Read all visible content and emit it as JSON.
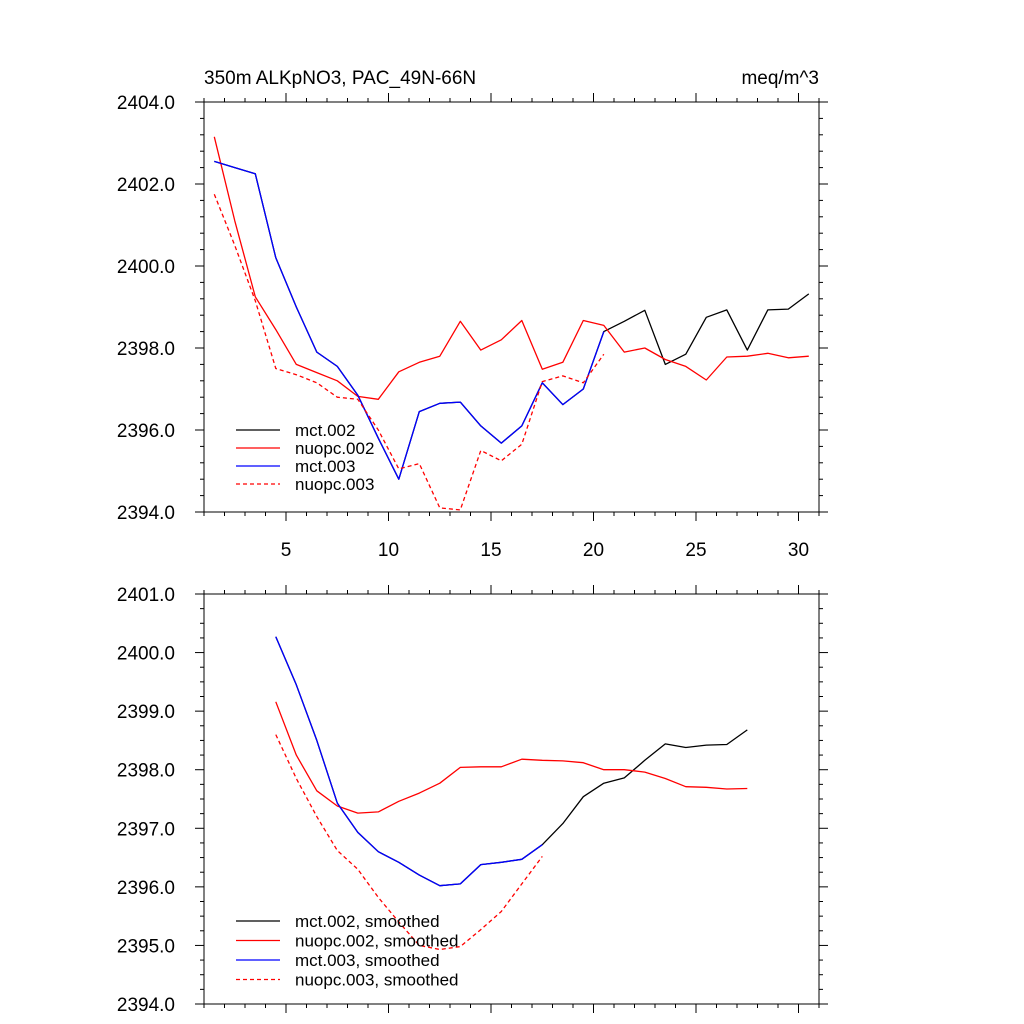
{
  "figure": {
    "title_left": "350m ALKpNO3, PAC_49N-66N",
    "title_right": "meq/m^3"
  },
  "chart_data": [
    {
      "type": "line",
      "title": "350m ALKpNO3, PAC_49N-66N",
      "units": "meq/m^3",
      "xlim": [
        1,
        31
      ],
      "ylim": [
        2394.0,
        2404.0
      ],
      "xticks": [
        5,
        10,
        15,
        20,
        25,
        30
      ],
      "yticks": [
        2394.0,
        2396.0,
        2398.0,
        2400.0,
        2402.0,
        2404.0
      ],
      "ytick_labels": [
        "2394.0",
        "2396.0",
        "2398.0",
        "2400.0",
        "2402.0",
        "2404.0"
      ],
      "legend_position": "bottom-left",
      "series": [
        {
          "name": "mct.002",
          "color": "#000000",
          "dash": "solid",
          "x": [
            1.5,
            2.5,
            3.5,
            4.5,
            5.5,
            6.5,
            7.5,
            8.5,
            9.5,
            10.5,
            11.5,
            12.5,
            13.5,
            14.5,
            15.5,
            16.5,
            17.5,
            18.5,
            19.5,
            20.5,
            21.5,
            22.5,
            23.5,
            24.5,
            25.5,
            26.5,
            27.5,
            28.5,
            29.5,
            30.5
          ],
          "values": [
            2402.55,
            2402.4,
            2402.25,
            2400.2,
            2399.0,
            2397.9,
            2397.55,
            2396.85,
            2395.8,
            2394.8,
            2396.45,
            2396.65,
            2396.68,
            2396.1,
            2395.68,
            2396.1,
            2397.15,
            2396.62,
            2397.0,
            2398.4,
            2398.65,
            2398.92,
            2397.6,
            2397.85,
            2398.75,
            2398.93,
            2397.95,
            2398.93,
            2398.95,
            2399.32
          ]
        },
        {
          "name": "nuopc.002",
          "color": "#ff0000",
          "dash": "solid",
          "x": [
            1.5,
            2.5,
            3.5,
            4.5,
            5.5,
            6.5,
            7.5,
            8.5,
            9.5,
            10.5,
            11.5,
            12.5,
            13.5,
            14.5,
            15.5,
            16.5,
            17.5,
            18.5,
            19.5,
            20.5,
            21.5,
            22.5,
            23.5,
            24.5,
            25.5,
            26.5,
            27.5,
            28.5,
            29.5,
            30.5
          ],
          "values": [
            2403.15,
            2401.1,
            2399.25,
            2398.45,
            2397.6,
            2397.4,
            2397.2,
            2396.82,
            2396.75,
            2397.42,
            2397.65,
            2397.8,
            2398.65,
            2397.95,
            2398.2,
            2398.67,
            2397.48,
            2397.65,
            2398.67,
            2398.55,
            2397.9,
            2398.0,
            2397.72,
            2397.55,
            2397.22,
            2397.78,
            2397.8,
            2397.87,
            2397.76,
            2397.8
          ]
        },
        {
          "name": "mct.003",
          "color": "#0000ff",
          "dash": "solid",
          "x": [
            1.5,
            2.5,
            3.5,
            4.5,
            5.5,
            6.5,
            7.5,
            8.5,
            9.5,
            10.5,
            11.5,
            12.5,
            13.5,
            14.5,
            15.5,
            16.5,
            17.5,
            18.5,
            19.5,
            20.5
          ],
          "values": [
            2402.55,
            2402.4,
            2402.25,
            2400.2,
            2399.0,
            2397.9,
            2397.55,
            2396.85,
            2395.8,
            2394.8,
            2396.45,
            2396.65,
            2396.68,
            2396.1,
            2395.68,
            2396.1,
            2397.15,
            2396.62,
            2397.0,
            2398.4
          ]
        },
        {
          "name": "nuopc.003",
          "color": "#ff0000",
          "dash": "dashed",
          "x": [
            1.5,
            2.5,
            3.5,
            4.5,
            5.5,
            6.5,
            7.5,
            8.5,
            9.5,
            10.5,
            11.5,
            12.5,
            13.5,
            14.5,
            15.5,
            16.5,
            17.5,
            18.5,
            19.5,
            20.5
          ],
          "values": [
            2401.75,
            2400.5,
            2399.15,
            2397.5,
            2397.35,
            2397.15,
            2396.8,
            2396.75,
            2396.0,
            2395.05,
            2395.18,
            2394.1,
            2394.05,
            2395.5,
            2395.25,
            2395.65,
            2397.18,
            2397.32,
            2397.15,
            2397.85
          ]
        }
      ]
    },
    {
      "type": "line",
      "title": "",
      "xlim": [
        1,
        31
      ],
      "ylim": [
        2394.0,
        2401.0
      ],
      "xticks": [
        5,
        10,
        15,
        20,
        25,
        30
      ],
      "yticks": [
        2394.0,
        2395.0,
        2396.0,
        2397.0,
        2398.0,
        2399.0,
        2400.0,
        2401.0
      ],
      "ytick_labels": [
        "2394.0",
        "2395.0",
        "2396.0",
        "2397.0",
        "2398.0",
        "2399.0",
        "2400.0",
        "2401.0"
      ],
      "legend_position": "bottom-left",
      "series": [
        {
          "name": "mct.002, smoothed",
          "color": "#000000",
          "dash": "solid",
          "x": [
            4.5,
            5.5,
            6.5,
            7.5,
            8.5,
            9.5,
            10.5,
            11.5,
            12.5,
            13.5,
            14.5,
            15.5,
            16.5,
            17.5,
            18.5,
            19.5,
            20.5,
            21.5,
            22.5,
            23.5,
            24.5,
            25.5,
            26.5,
            27.5
          ],
          "values": [
            2400.27,
            2399.45,
            2398.5,
            2397.43,
            2396.93,
            2396.6,
            2396.42,
            2396.2,
            2396.02,
            2396.05,
            2396.38,
            2396.42,
            2396.47,
            2396.72,
            2397.08,
            2397.54,
            2397.77,
            2397.86,
            2398.16,
            2398.44,
            2398.38,
            2398.42,
            2398.43,
            2398.68
          ]
        },
        {
          "name": "nuopc.002, smoothed",
          "color": "#ff0000",
          "dash": "solid",
          "x": [
            4.5,
            5.5,
            6.5,
            7.5,
            8.5,
            9.5,
            10.5,
            11.5,
            12.5,
            13.5,
            14.5,
            15.5,
            16.5,
            17.5,
            18.5,
            19.5,
            20.5,
            21.5,
            22.5,
            23.5,
            24.5,
            25.5,
            26.5,
            27.5
          ],
          "values": [
            2399.16,
            2398.25,
            2397.64,
            2397.38,
            2397.26,
            2397.28,
            2397.46,
            2397.6,
            2397.77,
            2398.04,
            2398.05,
            2398.05,
            2398.18,
            2398.16,
            2398.15,
            2398.12,
            2398.0,
            2398.0,
            2397.96,
            2397.85,
            2397.71,
            2397.7,
            2397.67,
            2397.68
          ]
        },
        {
          "name": "mct.003, smoothed",
          "color": "#0000ff",
          "dash": "solid",
          "x": [
            4.5,
            5.5,
            6.5,
            7.5,
            8.5,
            9.5,
            10.5,
            11.5,
            12.5,
            13.5,
            14.5,
            15.5,
            16.5,
            17.5
          ],
          "values": [
            2400.27,
            2399.45,
            2398.5,
            2397.43,
            2396.93,
            2396.6,
            2396.42,
            2396.2,
            2396.02,
            2396.05,
            2396.38,
            2396.42,
            2396.47,
            2396.72
          ]
        },
        {
          "name": "nuopc.003, smoothed",
          "color": "#ff0000",
          "dash": "dashed",
          "x": [
            4.5,
            5.5,
            6.5,
            7.5,
            8.5,
            9.5,
            10.5,
            11.5,
            12.5,
            13.5,
            14.5,
            15.5,
            16.5,
            17.5
          ],
          "values": [
            2398.6,
            2397.85,
            2397.2,
            2396.62,
            2396.3,
            2395.82,
            2395.4,
            2395.0,
            2394.93,
            2394.98,
            2395.27,
            2395.58,
            2396.05,
            2396.52
          ]
        }
      ]
    }
  ]
}
